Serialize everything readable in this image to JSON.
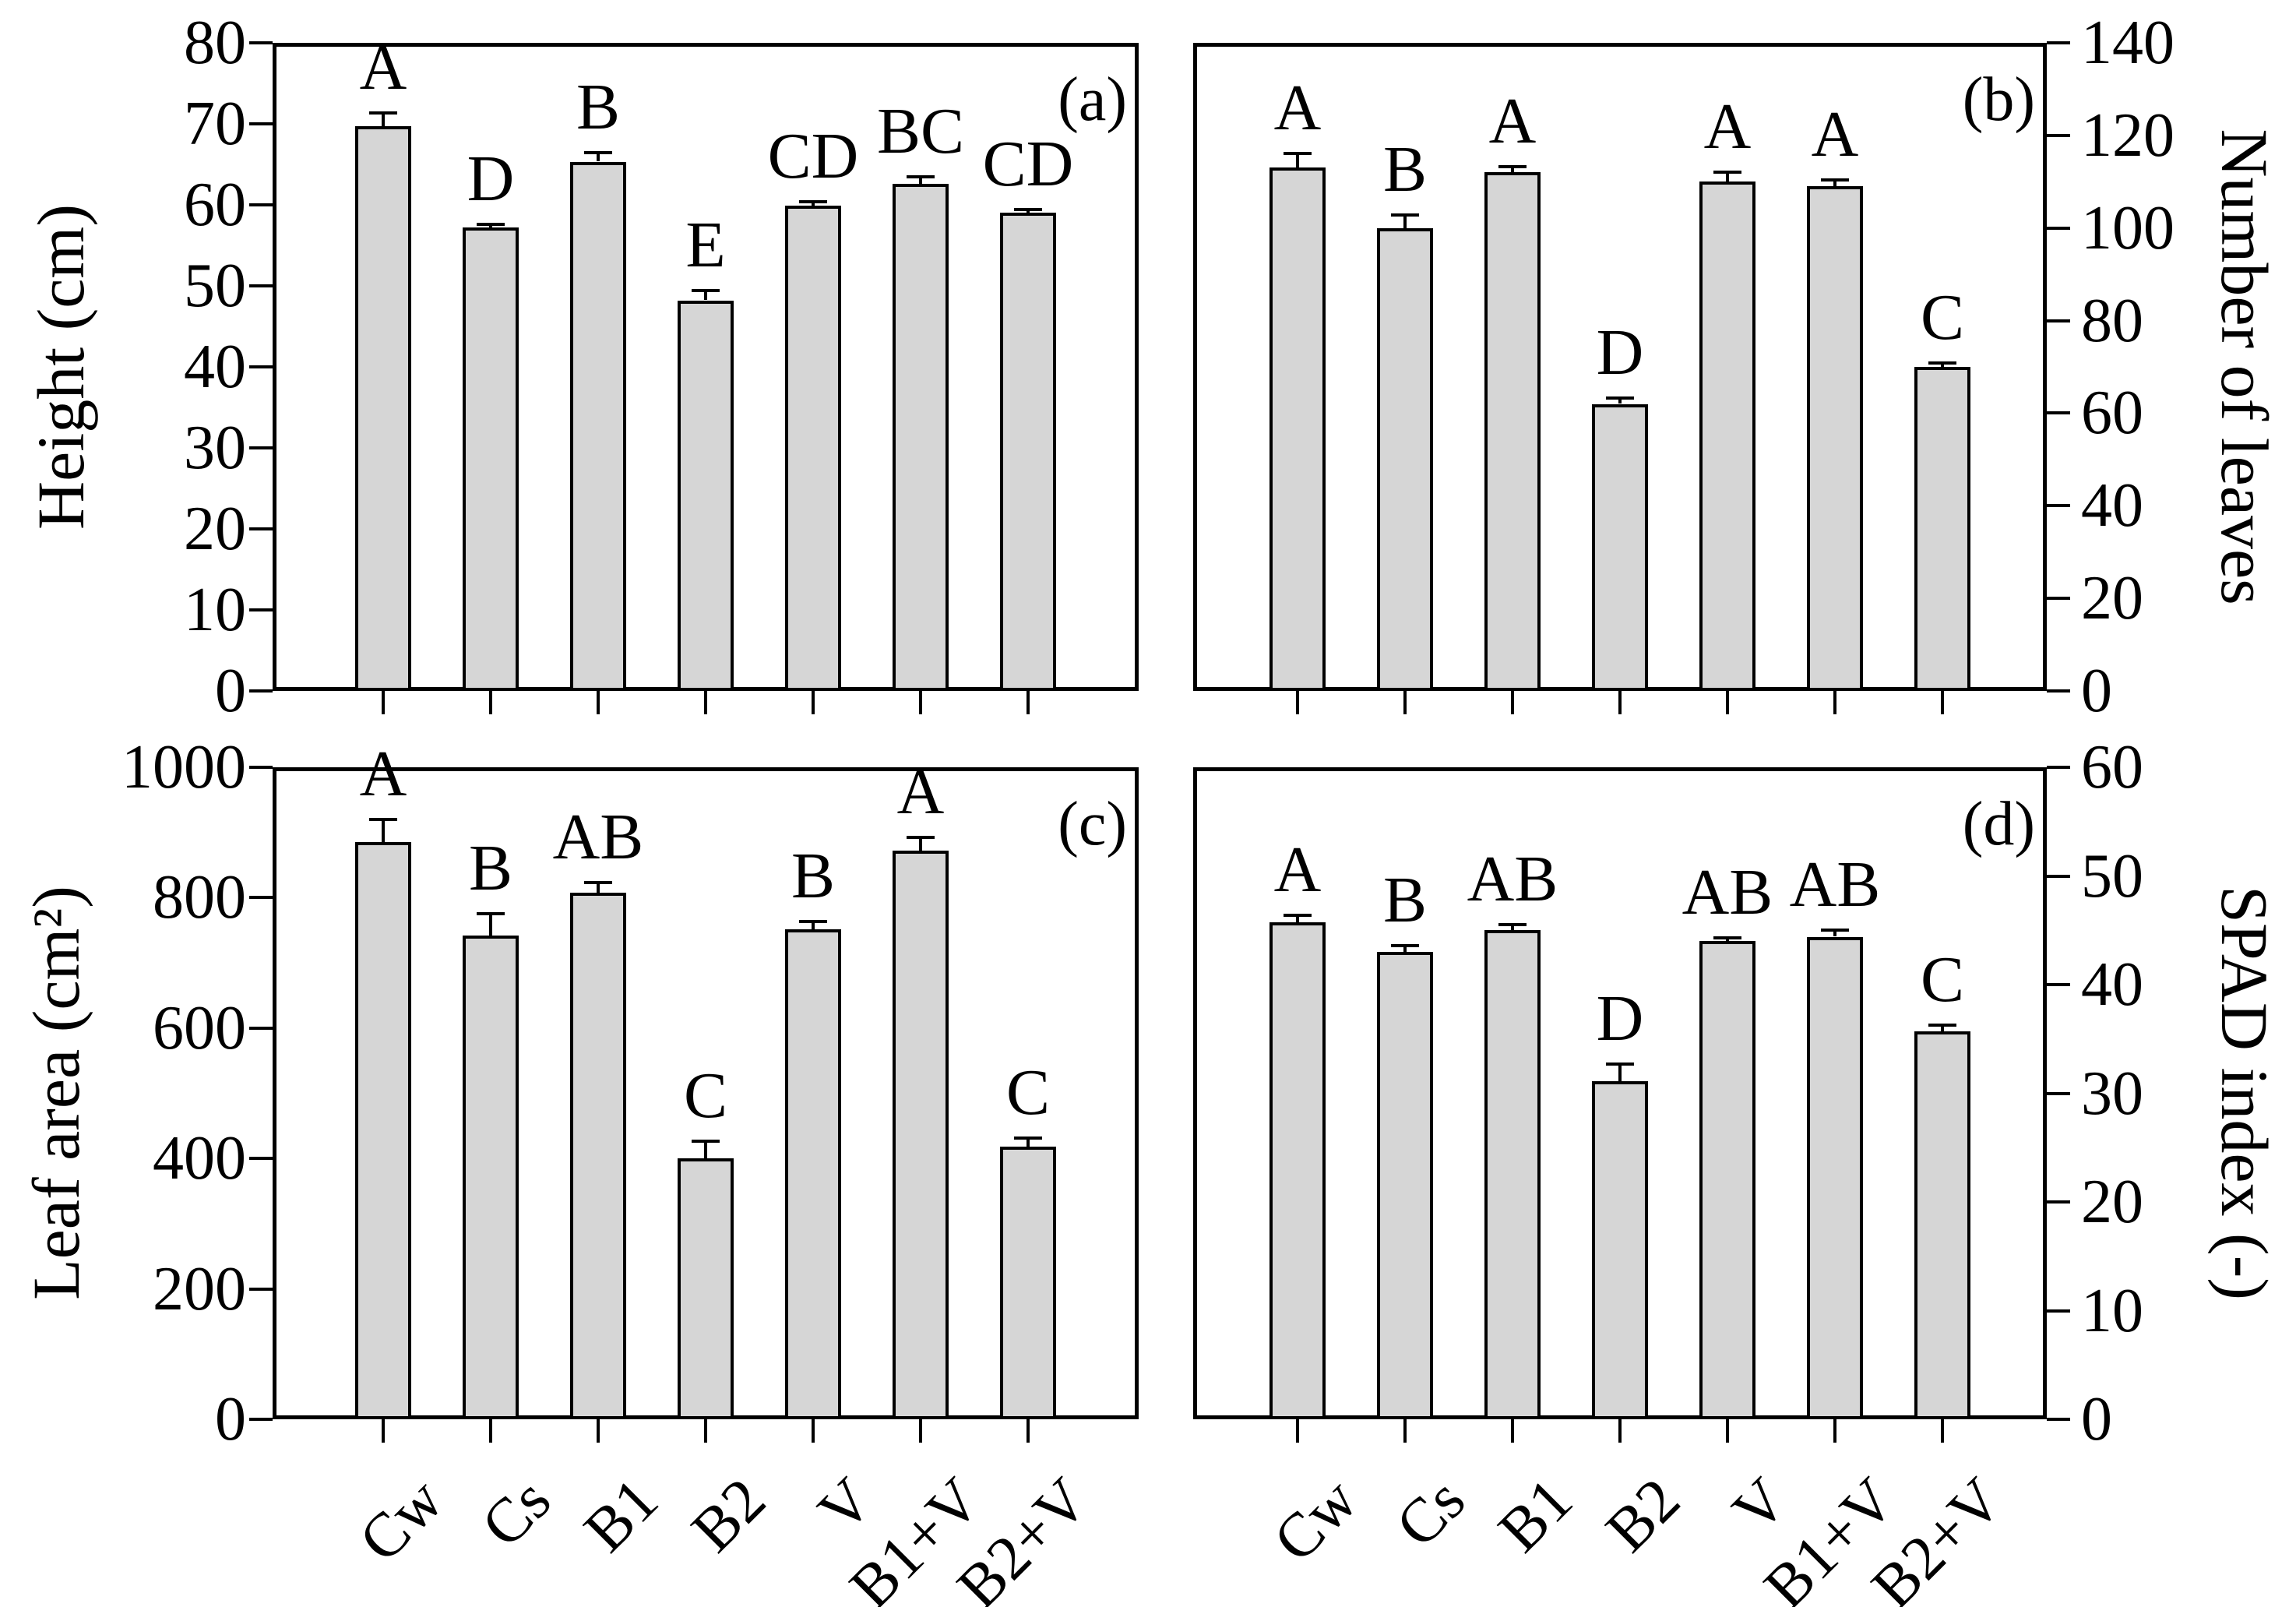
{
  "figure": {
    "background": "#ffffff",
    "bar_fill": "#d6d6d6",
    "bar_border": "#000000",
    "text_color": "#000000"
  },
  "categories": [
    "Cw",
    "Cs",
    "B1",
    "B2",
    "V",
    "B1+V",
    "B2+V"
  ],
  "chart_data": [
    {
      "type": "bar",
      "panel_tag": "(a)",
      "ylabel": "Height (cm)",
      "axis_side": "left",
      "ylim": [
        0,
        80
      ],
      "yticks": [
        0,
        10,
        20,
        30,
        40,
        50,
        60,
        70,
        80
      ],
      "grid": false,
      "categories": [
        "Cw",
        "Cs",
        "B1",
        "B2",
        "V",
        "B1+V",
        "B2+V"
      ],
      "values": [
        69.7,
        57.2,
        65.3,
        48.2,
        59.9,
        62.6,
        59.0
      ],
      "errors": [
        1.6,
        0.4,
        1.1,
        1.2,
        0.5,
        0.9,
        0.4
      ],
      "letters": [
        "A",
        "D",
        "B",
        "E",
        "CD",
        "BC",
        "CD"
      ],
      "show_category_labels": false
    },
    {
      "type": "bar",
      "panel_tag": "(b)",
      "ylabel": "Number of leaves",
      "axis_side": "right",
      "ylim": [
        0,
        140
      ],
      "yticks": [
        0,
        20,
        40,
        60,
        80,
        100,
        120,
        140
      ],
      "grid": false,
      "categories": [
        "Cw",
        "Cs",
        "B1",
        "B2",
        "V",
        "B1+V",
        "B2+V"
      ],
      "values": [
        113,
        100,
        112,
        62,
        110,
        109,
        70
      ],
      "errors": [
        3.1,
        2.8,
        1.3,
        1.2,
        2.1,
        1.4,
        0.8
      ],
      "letters": [
        "A",
        "B",
        "A",
        "D",
        "A",
        "A",
        "C"
      ],
      "show_category_labels": false
    },
    {
      "type": "bar",
      "panel_tag": "(c)",
      "ylabel": "Leaf area (cm²)",
      "axis_side": "left",
      "ylim": [
        0,
        1000
      ],
      "yticks": [
        0,
        200,
        400,
        600,
        800,
        1000
      ],
      "grid": false,
      "categories": [
        "Cw",
        "Cs",
        "B1",
        "B2",
        "V",
        "B1+V",
        "B2+V"
      ],
      "values": [
        885,
        742,
        808,
        400,
        752,
        872,
        418
      ],
      "errors": [
        35,
        33,
        15,
        27,
        12,
        20,
        13
      ],
      "letters": [
        "A",
        "B",
        "AB",
        "C",
        "B",
        "A",
        "C"
      ],
      "show_category_labels": true
    },
    {
      "type": "bar",
      "panel_tag": "(d)",
      "ylabel": "SPAD index (-)",
      "axis_side": "right",
      "ylim": [
        0,
        60
      ],
      "yticks": [
        0,
        10,
        20,
        30,
        40,
        50,
        60
      ],
      "grid": false,
      "categories": [
        "Cw",
        "Cs",
        "B1",
        "B2",
        "V",
        "B1+V",
        "B2+V"
      ],
      "values": [
        45.7,
        43.0,
        45.0,
        31.1,
        44.0,
        44.4,
        35.7
      ],
      "errors": [
        0.7,
        0.6,
        0.5,
        1.6,
        0.3,
        0.6,
        0.6
      ],
      "letters": [
        "A",
        "B",
        "AB",
        "D",
        "AB",
        "AB",
        "C"
      ],
      "show_category_labels": true
    }
  ]
}
